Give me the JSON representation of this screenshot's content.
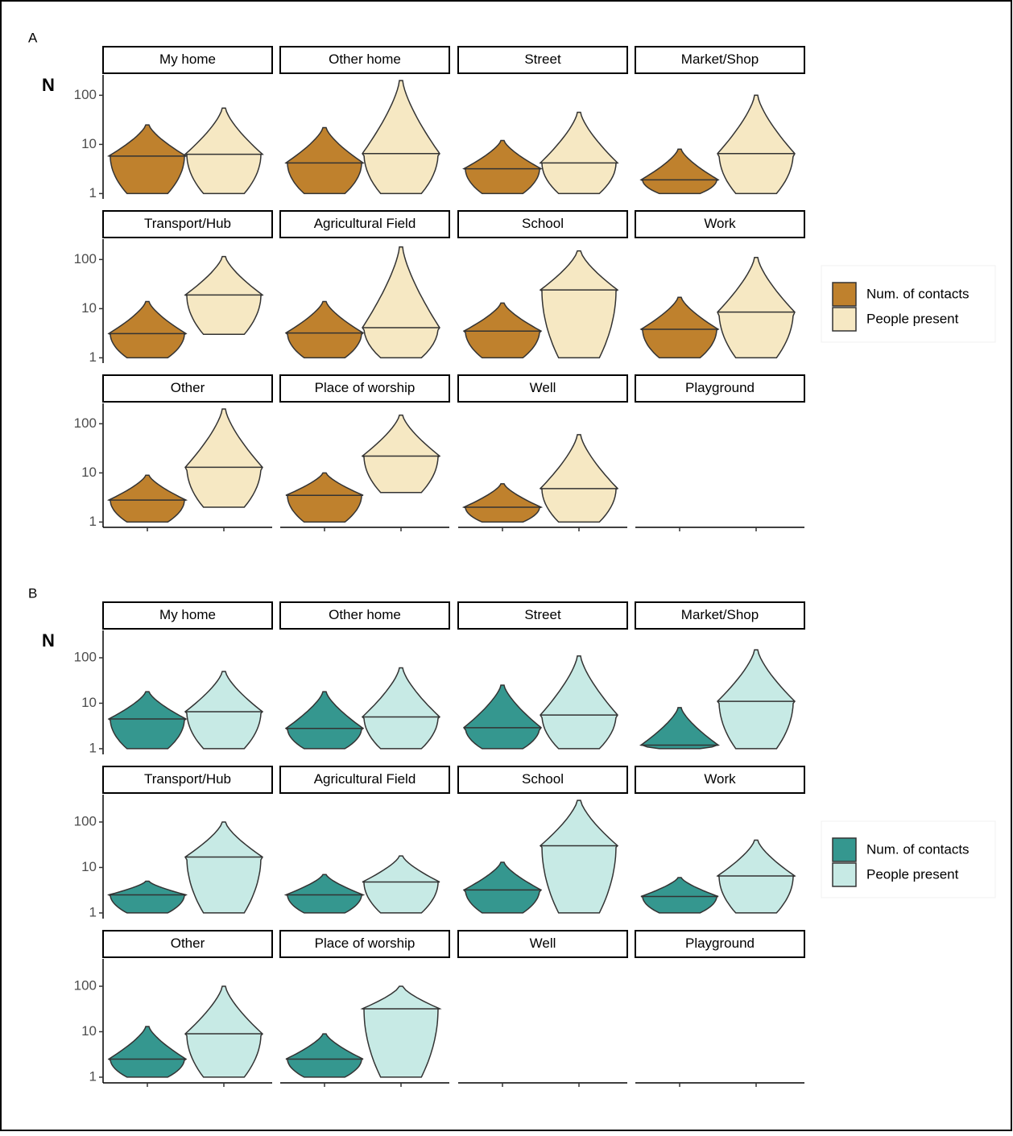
{
  "chart_data": [
    {
      "type": "violin",
      "label": "A",
      "y_label": "N",
      "log_scale": true,
      "ylim": [
        0.78,
        260
      ],
      "yticks": [
        1,
        10,
        100
      ],
      "series": [
        {
          "name": "Num. of contacts",
          "color": "#bf812d"
        },
        {
          "name": "People present",
          "color": "#f6e8c3"
        }
      ],
      "panels": [
        {
          "title": "My home",
          "violins": [
            {
              "min": 1,
              "median": 5.8,
              "max": 25
            },
            {
              "min": 1,
              "median": 6.3,
              "max": 55
            }
          ]
        },
        {
          "title": "Other home",
          "violins": [
            {
              "min": 1,
              "median": 4.2,
              "max": 22
            },
            {
              "min": 1,
              "median": 6.5,
              "max": 200
            }
          ]
        },
        {
          "title": "Street",
          "violins": [
            {
              "min": 1,
              "median": 3.2,
              "max": 12
            },
            {
              "min": 1,
              "median": 4.2,
              "max": 45
            }
          ]
        },
        {
          "title": "Market/Shop",
          "violins": [
            {
              "min": 1,
              "median": 1.9,
              "max": 8
            },
            {
              "min": 1,
              "median": 6.5,
              "max": 100
            }
          ]
        },
        {
          "title": "Transport/Hub",
          "violins": [
            {
              "min": 1,
              "median": 3.1,
              "max": 14
            },
            {
              "min": 3,
              "median": 19,
              "max": 115
            }
          ]
        },
        {
          "title": "Agricultural Field",
          "violins": [
            {
              "min": 1,
              "median": 3.2,
              "max": 14
            },
            {
              "min": 1,
              "median": 4.1,
              "max": 180
            }
          ]
        },
        {
          "title": "School",
          "violins": [
            {
              "min": 1,
              "median": 3.5,
              "max": 13
            },
            {
              "min": 1,
              "median": 24,
              "max": 150
            }
          ]
        },
        {
          "title": "Work",
          "violins": [
            {
              "min": 1,
              "median": 3.8,
              "max": 17
            },
            {
              "min": 1,
              "median": 8.5,
              "max": 110
            }
          ]
        },
        {
          "title": "Other",
          "violins": [
            {
              "min": 1,
              "median": 2.8,
              "max": 9
            },
            {
              "min": 2,
              "median": 13,
              "max": 200
            }
          ]
        },
        {
          "title": "Place of worship",
          "violins": [
            {
              "min": 1,
              "median": 3.5,
              "max": 10
            },
            {
              "min": 4,
              "median": 22,
              "max": 150
            }
          ]
        },
        {
          "title": "Well",
          "violins": [
            {
              "min": 1,
              "median": 2,
              "max": 6
            },
            {
              "min": 1,
              "median": 4.8,
              "max": 60
            }
          ]
        },
        {
          "title": "Playground",
          "violins": []
        }
      ]
    },
    {
      "type": "violin",
      "label": "B",
      "y_label": "N",
      "log_scale": true,
      "ylim": [
        0.75,
        400
      ],
      "yticks": [
        1,
        10,
        100
      ],
      "series": [
        {
          "name": "Num. of contacts",
          "color": "#35978f"
        },
        {
          "name": "People present",
          "color": "#c7eae5"
        }
      ],
      "panels": [
        {
          "title": "My home",
          "violins": [
            {
              "min": 1,
              "median": 4.5,
              "max": 18
            },
            {
              "min": 1,
              "median": 6.5,
              "max": 50
            }
          ]
        },
        {
          "title": "Other home",
          "violins": [
            {
              "min": 1,
              "median": 2.8,
              "max": 18
            },
            {
              "min": 1,
              "median": 5,
              "max": 60
            }
          ]
        },
        {
          "title": "Street",
          "violins": [
            {
              "min": 1,
              "median": 2.9,
              "max": 25
            },
            {
              "min": 1,
              "median": 5.5,
              "max": 110
            }
          ]
        },
        {
          "title": "Market/Shop",
          "violins": [
            {
              "min": 1,
              "median": 1.2,
              "max": 8
            },
            {
              "min": 1,
              "median": 11,
              "max": 150
            }
          ]
        },
        {
          "title": "Transport/Hub",
          "violins": [
            {
              "min": 1,
              "median": 2.5,
              "max": 5
            },
            {
              "min": 1,
              "median": 17,
              "max": 100
            }
          ]
        },
        {
          "title": "Agricultural Field",
          "violins": [
            {
              "min": 1,
              "median": 2.5,
              "max": 7
            },
            {
              "min": 1,
              "median": 4.8,
              "max": 18
            }
          ]
        },
        {
          "title": "School",
          "violins": [
            {
              "min": 1,
              "median": 3.2,
              "max": 13
            },
            {
              "min": 1,
              "median": 30,
              "max": 300
            }
          ]
        },
        {
          "title": "Work",
          "violins": [
            {
              "min": 1,
              "median": 2.3,
              "max": 6
            },
            {
              "min": 1,
              "median": 6.5,
              "max": 40
            }
          ]
        },
        {
          "title": "Other",
          "violins": [
            {
              "min": 1,
              "median": 2.5,
              "max": 13
            },
            {
              "min": 1,
              "median": 9,
              "max": 100
            }
          ]
        },
        {
          "title": "Place of worship",
          "violins": [
            {
              "min": 1,
              "median": 2.5,
              "max": 9
            },
            {
              "min": 1,
              "median": 32,
              "max": 100
            }
          ]
        },
        {
          "title": "Well",
          "violins": []
        },
        {
          "title": "Playground",
          "violins": []
        }
      ]
    }
  ]
}
